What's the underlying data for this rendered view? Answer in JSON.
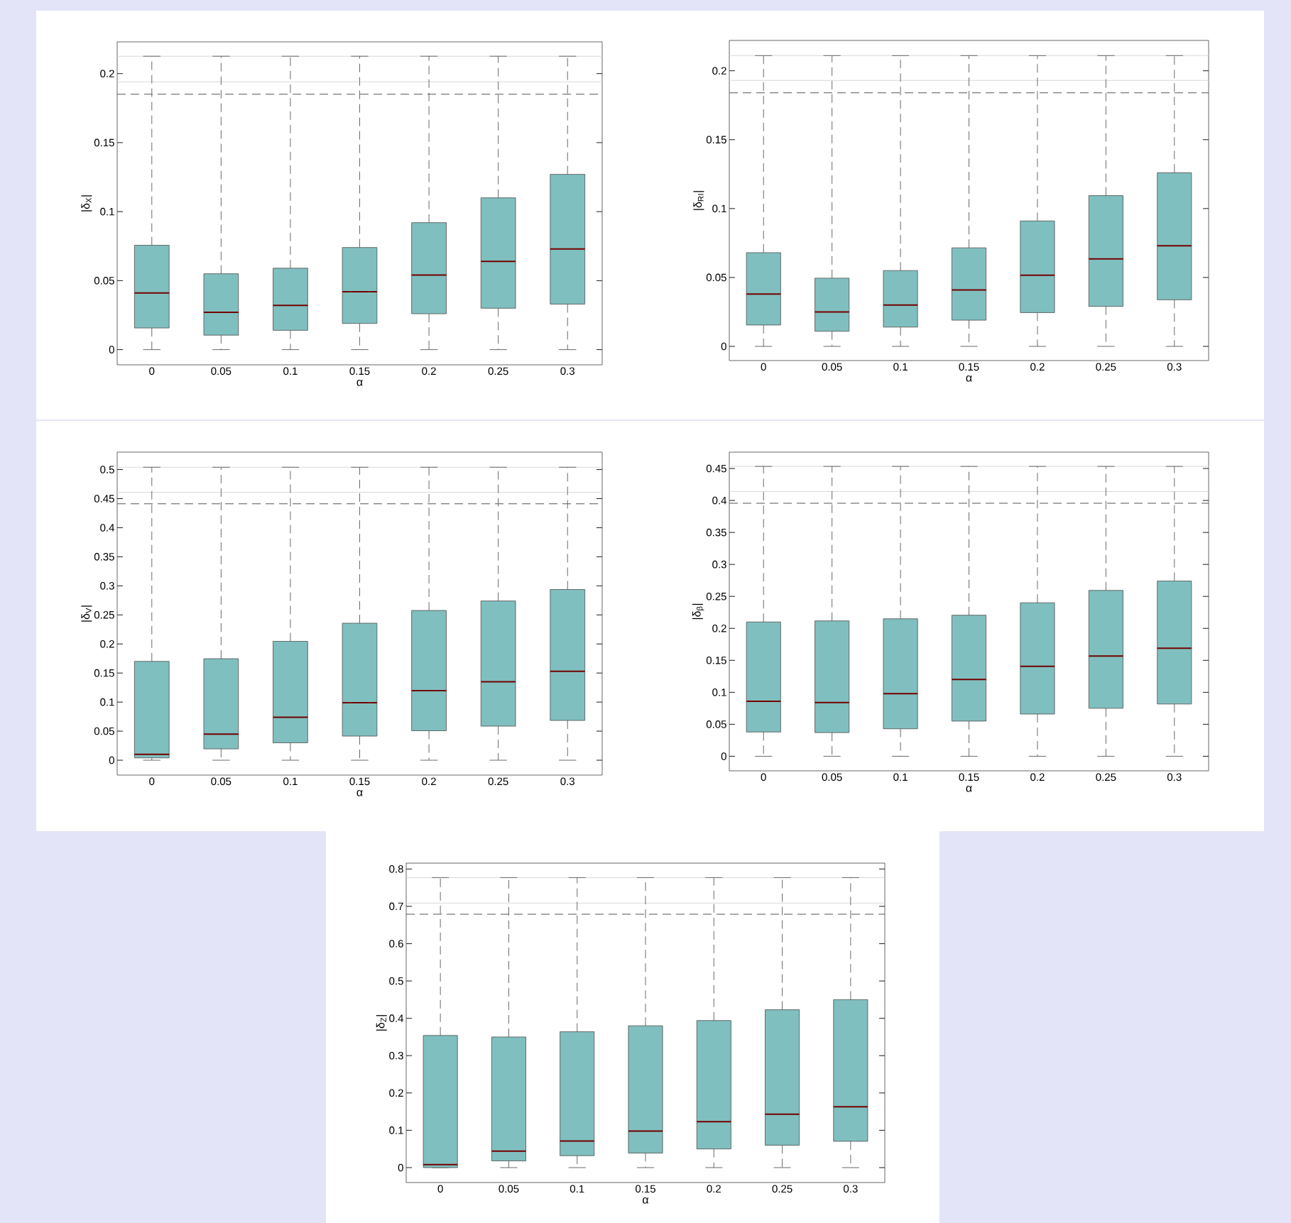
{
  "chart_data": [
    {
      "type": "box",
      "xlabel": "α",
      "ylabel": "|δ$_{X}$|",
      "categories": [
        "0",
        "0.05",
        "0.1",
        "0.15",
        "0.2",
        "0.25",
        "0.3"
      ],
      "ylim": [
        -0.011,
        0.223
      ],
      "yticks": [
        0,
        0.05,
        0.1,
        0.15,
        0.2
      ],
      "series": [
        {
          "color": "#80bfbf",
          "boxes": [
            {
              "low": 0,
              "q1": 0.0157,
              "median": 0.041,
              "q3": 0.0756,
              "high": 0.2126
            },
            {
              "low": 0,
              "q1": 0.0105,
              "median": 0.027,
              "q3": 0.055,
              "high": 0.2126
            },
            {
              "low": 0,
              "q1": 0.014,
              "median": 0.032,
              "q3": 0.059,
              "high": 0.2126
            },
            {
              "low": 0,
              "q1": 0.019,
              "median": 0.042,
              "q3": 0.074,
              "high": 0.2126
            },
            {
              "low": 0,
              "q1": 0.026,
              "median": 0.054,
              "q3": 0.092,
              "high": 0.2126
            },
            {
              "low": 0,
              "q1": 0.03,
              "median": 0.064,
              "q3": 0.11,
              "high": 0.2126
            },
            {
              "low": 0,
              "q1": 0.033,
              "median": 0.073,
              "q3": 0.127,
              "high": 0.2126
            }
          ]
        }
      ],
      "ref_lines": [
        {
          "axis": "y",
          "value": 0.2126,
          "color": "#d9d9d9"
        },
        {
          "axis": "y",
          "value": 0.194,
          "color": "#d9d9d9"
        },
        {
          "axis": "y",
          "value": 0.185,
          "color": "#555555",
          "line_style": "dashed"
        }
      ]
    },
    {
      "type": "box",
      "xlabel": "α",
      "ylabel": "|δ$_{R}$$_{I}$|",
      "categories": [
        "0",
        "0.05",
        "0.1",
        "0.15",
        "0.2",
        "0.25",
        "0.3"
      ],
      "ylim": [
        -0.0103,
        0.222
      ],
      "yticks": [
        0,
        0.05,
        0.1,
        0.15,
        0.2
      ],
      "series": [
        {
          "color": "#80bfbf",
          "boxes": [
            {
              "low": 0,
              "q1": 0.0155,
              "median": 0.038,
              "q3": 0.068,
              "high": 0.211
            },
            {
              "low": 0,
              "q1": 0.011,
              "median": 0.025,
              "q3": 0.0495,
              "high": 0.211
            },
            {
              "low": 0,
              "q1": 0.014,
              "median": 0.03,
              "q3": 0.055,
              "high": 0.211
            },
            {
              "low": 0,
              "q1": 0.019,
              "median": 0.041,
              "q3": 0.0715,
              "high": 0.211
            },
            {
              "low": 0,
              "q1": 0.0245,
              "median": 0.0516,
              "q3": 0.091,
              "high": 0.211
            },
            {
              "low": 0,
              "q1": 0.029,
              "median": 0.0635,
              "q3": 0.1094,
              "high": 0.211
            },
            {
              "low": 0,
              "q1": 0.0338,
              "median": 0.073,
              "q3": 0.126,
              "high": 0.211
            }
          ]
        }
      ],
      "ref_lines": [
        {
          "axis": "y",
          "value": 0.211,
          "color": "#d9d9d9"
        },
        {
          "axis": "y",
          "value": 0.193,
          "color": "#d9d9d9"
        },
        {
          "axis": "y",
          "value": 0.184,
          "color": "#555555",
          "line_style": "dashed"
        }
      ]
    },
    {
      "type": "box",
      "xlabel": "α",
      "ylabel": "|δ$_{V}$|",
      "categories": [
        "0",
        "0.05",
        "0.1",
        "0.15",
        "0.2",
        "0.25",
        "0.3"
      ],
      "ylim": [
        -0.0256,
        0.53
      ],
      "yticks": [
        0,
        0.05,
        0.1,
        0.15,
        0.2,
        0.25,
        0.3,
        0.35,
        0.4,
        0.45,
        0.5
      ],
      "series": [
        {
          "color": "#80bfbf",
          "boxes": [
            {
              "low": 0,
              "q1": 0.004,
              "median": 0.01,
              "q3": 0.17,
              "high": 0.504
            },
            {
              "low": 0,
              "q1": 0.0195,
              "median": 0.045,
              "q3": 0.1746,
              "high": 0.504
            },
            {
              "low": 0,
              "q1": 0.03,
              "median": 0.074,
              "q3": 0.2045,
              "high": 0.504
            },
            {
              "low": 0,
              "q1": 0.0415,
              "median": 0.099,
              "q3": 0.2357,
              "high": 0.504
            },
            {
              "low": 0,
              "q1": 0.0507,
              "median": 0.1197,
              "q3": 0.2576,
              "high": 0.504
            },
            {
              "low": 0,
              "q1": 0.0586,
              "median": 0.135,
              "q3": 0.274,
              "high": 0.504
            },
            {
              "low": 0,
              "q1": 0.0684,
              "median": 0.153,
              "q3": 0.2937,
              "high": 0.504
            }
          ]
        }
      ],
      "ref_lines": [
        {
          "axis": "y",
          "value": 0.504,
          "color": "#d9d9d9"
        },
        {
          "axis": "y",
          "value": 0.461,
          "color": "#d9d9d9"
        },
        {
          "axis": "y",
          "value": 0.441,
          "color": "#555555",
          "line_style": "dashed"
        }
      ]
    },
    {
      "type": "box",
      "xlabel": "α",
      "ylabel": "|δ$_{β}$|",
      "categories": [
        "0",
        "0.05",
        "0.1",
        "0.15",
        "0.2",
        "0.25",
        "0.3"
      ],
      "ylim": [
        -0.0228,
        0.4756
      ],
      "yticks": [
        0,
        0.05,
        0.1,
        0.15,
        0.2,
        0.25,
        0.3,
        0.35,
        0.4,
        0.45
      ],
      "series": [
        {
          "color": "#80bfbf",
          "boxes": [
            {
              "low": 0,
              "q1": 0.038,
              "median": 0.086,
              "q3": 0.21,
              "high": 0.4533
            },
            {
              "low": 0,
              "q1": 0.037,
              "median": 0.084,
              "q3": 0.2117,
              "high": 0.4533
            },
            {
              "low": 0,
              "q1": 0.043,
              "median": 0.098,
              "q3": 0.215,
              "high": 0.4533
            },
            {
              "low": 0,
              "q1": 0.055,
              "median": 0.12,
              "q3": 0.2206,
              "high": 0.4533
            },
            {
              "low": 0,
              "q1": 0.066,
              "median": 0.1406,
              "q3": 0.24,
              "high": 0.4533
            },
            {
              "low": 0,
              "q1": 0.075,
              "median": 0.1567,
              "q3": 0.2594,
              "high": 0.4533
            },
            {
              "low": 0,
              "q1": 0.0817,
              "median": 0.169,
              "q3": 0.274,
              "high": 0.4533
            }
          ]
        }
      ],
      "ref_lines": [
        {
          "axis": "y",
          "value": 0.4533,
          "color": "#d9d9d9"
        },
        {
          "axis": "y",
          "value": 0.414,
          "color": "#d9d9d9"
        },
        {
          "axis": "y",
          "value": 0.3956,
          "color": "#555555",
          "line_style": "dashed"
        }
      ]
    },
    {
      "type": "box",
      "xlabel": "α",
      "ylabel": "|δ$_{Z}$|",
      "categories": [
        "0",
        "0.05",
        "0.1",
        "0.15",
        "0.2",
        "0.25",
        "0.3"
      ],
      "ylim": [
        -0.04,
        0.8158
      ],
      "yticks": [
        0,
        0.1,
        0.2,
        0.3,
        0.4,
        0.5,
        0.6,
        0.7,
        0.8
      ],
      "series": [
        {
          "color": "#80bfbf",
          "boxes": [
            {
              "low": 0,
              "q1": 0,
              "median": 0.008,
              "q3": 0.354,
              "high": 0.777
            },
            {
              "low": 0,
              "q1": 0.018,
              "median": 0.044,
              "q3": 0.35,
              "high": 0.777
            },
            {
              "low": 0,
              "q1": 0.032,
              "median": 0.071,
              "q3": 0.364,
              "high": 0.777
            },
            {
              "low": 0,
              "q1": 0.039,
              "median": 0.098,
              "q3": 0.38,
              "high": 0.777
            },
            {
              "low": 0,
              "q1": 0.05,
              "median": 0.123,
              "q3": 0.394,
              "high": 0.777
            },
            {
              "low": 0,
              "q1": 0.06,
              "median": 0.143,
              "q3": 0.423,
              "high": 0.777
            },
            {
              "low": 0,
              "q1": 0.0705,
              "median": 0.163,
              "q3": 0.45,
              "high": 0.777
            }
          ]
        }
      ],
      "ref_lines": [
        {
          "axis": "y",
          "value": 0.777,
          "color": "#d9d9d9"
        },
        {
          "axis": "y",
          "value": 0.709,
          "color": "#d9d9d9"
        },
        {
          "axis": "y",
          "value": 0.679,
          "color": "#555555",
          "line_style": "dashed"
        }
      ]
    }
  ]
}
